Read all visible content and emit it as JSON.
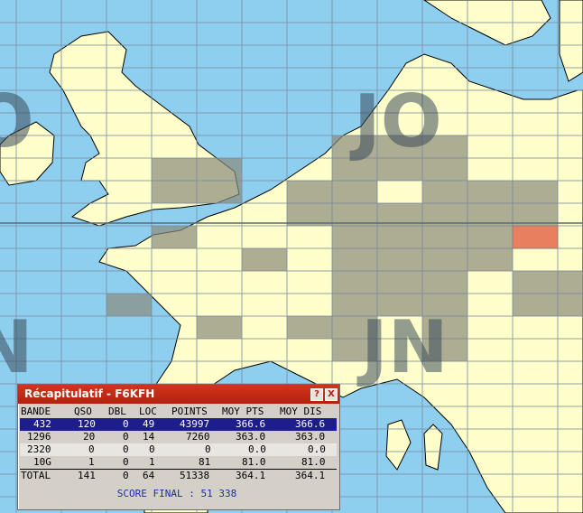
{
  "map": {
    "grid_labels": [
      "JO",
      "JN",
      "IO",
      "IN"
    ],
    "highlight_color": "#e88060"
  },
  "window": {
    "title": "Récapitulatif - F6KFH",
    "help_icon": "?",
    "close_icon": "X"
  },
  "table": {
    "headers": [
      "BANDE",
      "QSO",
      "DBL",
      "LOC",
      "POINTS",
      "MOY PTS",
      "MOY DIS"
    ],
    "rows": [
      [
        "432",
        "120",
        "0",
        "49",
        "43997",
        "366.6",
        "366.6"
      ],
      [
        "1296",
        "20",
        "0",
        "14",
        "7260",
        "363.0",
        "363.0"
      ],
      [
        "2320",
        "0",
        "0",
        "0",
        "0",
        "0.0",
        "0.0"
      ],
      [
        "10G",
        "1",
        "0",
        "1",
        "81",
        "81.0",
        "81.0"
      ]
    ],
    "total": [
      "TOTAL",
      "141",
      "0",
      "64",
      "51338",
      "364.1",
      "364.1"
    ],
    "score_final": "SCORE FINAL : 51 338"
  }
}
